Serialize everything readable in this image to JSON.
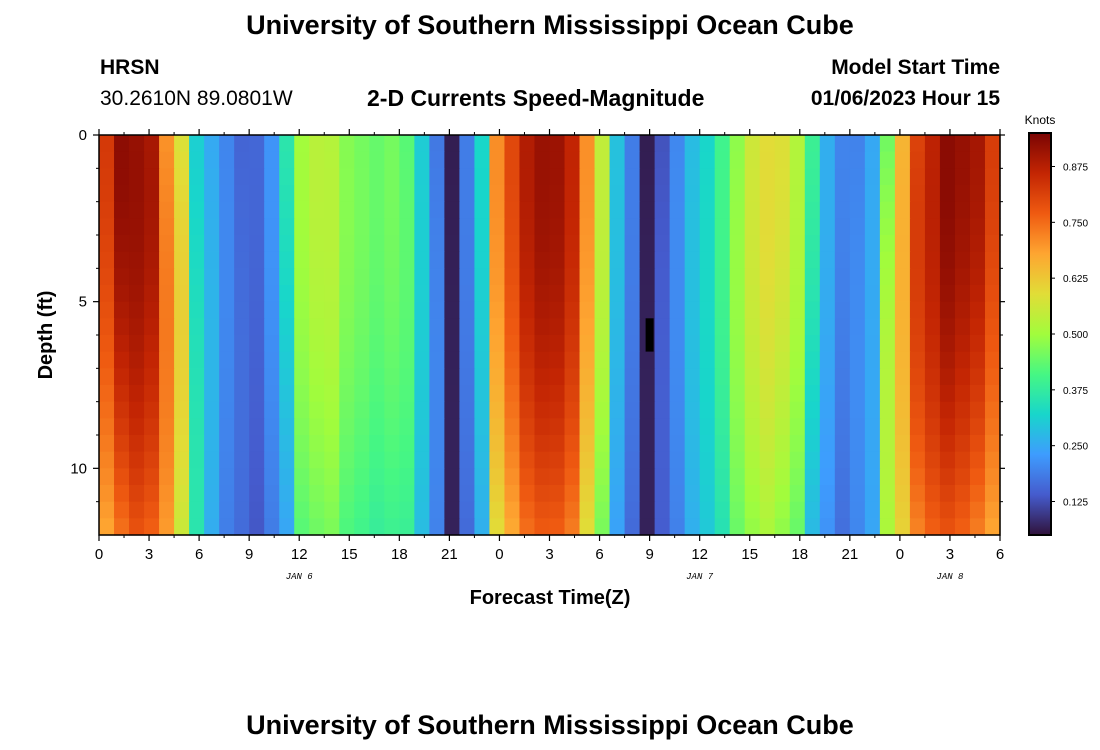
{
  "page": {
    "title_top": "University of Southern Mississippi Ocean Cube",
    "title_bottom": "University of Southern Mississippi Ocean Cube",
    "station": "HRSN",
    "coords": "30.2610N  89.0801W",
    "center_title": "2-D Currents Speed-Magnitude",
    "model_label": "Model Start Time",
    "model_time": "01/06/2023 Hour 15"
  },
  "chart_data": {
    "type": "heatmap",
    "title": "2-D Currents Speed-Magnitude",
    "xlabel": "Forecast Time(Z)",
    "ylabel": "Depth (ft)",
    "x_tick_labels": [
      "0",
      "3",
      "6",
      "9",
      "12",
      "15",
      "18",
      "21",
      "0",
      "3",
      "6",
      "9",
      "12",
      "15",
      "18",
      "21",
      "0",
      "3",
      "6"
    ],
    "x_hours": [
      0,
      3,
      6,
      9,
      12,
      15,
      18,
      21,
      24,
      27,
      30,
      33,
      36,
      39,
      42,
      45,
      48,
      51,
      54
    ],
    "xlim": [
      0,
      54
    ],
    "date_labels": [
      {
        "text": "JAN 6",
        "hour": 12
      },
      {
        "text": "JAN 7",
        "hour": 36
      },
      {
        "text": "JAN 8",
        "hour": 51
      }
    ],
    "y_tick_labels": [
      "0",
      "5",
      "10"
    ],
    "y_values": [
      0,
      5,
      10
    ],
    "ylim": [
      0,
      12
    ],
    "colorbar": {
      "label": "Knots",
      "min": 0.05,
      "max": 0.95,
      "tick_labels": [
        "0.875",
        "0.750",
        "0.625",
        "0.500",
        "0.375",
        "0.250",
        "0.125"
      ],
      "tick_values": [
        0.875,
        0.75,
        0.625,
        0.5,
        0.375,
        0.25,
        0.125
      ]
    },
    "speed_profile_knots": [
      {
        "hour": 0,
        "speed": 0.8
      },
      {
        "hour": 1.5,
        "speed": 0.93
      },
      {
        "hour": 3,
        "speed": 0.9
      },
      {
        "hour": 4.5,
        "speed": 0.65
      },
      {
        "hour": 6,
        "speed": 0.3
      },
      {
        "hour": 7.5,
        "speed": 0.2
      },
      {
        "hour": 9,
        "speed": 0.14
      },
      {
        "hour": 10.5,
        "speed": 0.22
      },
      {
        "hour": 12,
        "speed": 0.5
      },
      {
        "hour": 13.5,
        "speed": 0.54
      },
      {
        "hour": 15,
        "speed": 0.47
      },
      {
        "hour": 16.5,
        "speed": 0.44
      },
      {
        "hour": 18,
        "speed": 0.46
      },
      {
        "hour": 19.5,
        "speed": 0.3
      },
      {
        "hour": 21,
        "speed": 0.06
      },
      {
        "hour": 22.5,
        "speed": 0.22
      },
      {
        "hour": 24,
        "speed": 0.72
      },
      {
        "hour": 25.5,
        "speed": 0.88
      },
      {
        "hour": 27,
        "speed": 0.92
      },
      {
        "hour": 28.5,
        "speed": 0.86
      },
      {
        "hour": 30,
        "speed": 0.55
      },
      {
        "hour": 31.5,
        "speed": 0.22
      },
      {
        "hour": 33,
        "speed": 0.06
      },
      {
        "hour": 34.5,
        "speed": 0.2
      },
      {
        "hour": 36,
        "speed": 0.3
      },
      {
        "hour": 37.5,
        "speed": 0.4
      },
      {
        "hour": 39,
        "speed": 0.56
      },
      {
        "hour": 40.5,
        "speed": 0.6
      },
      {
        "hour": 42,
        "speed": 0.52
      },
      {
        "hour": 43.5,
        "speed": 0.26
      },
      {
        "hour": 45,
        "speed": 0.18
      },
      {
        "hour": 46.5,
        "speed": 0.25
      },
      {
        "hour": 48,
        "speed": 0.65
      },
      {
        "hour": 49.5,
        "speed": 0.85
      },
      {
        "hour": 51,
        "speed": 0.93
      },
      {
        "hour": 52.5,
        "speed": 0.9
      },
      {
        "hour": 54,
        "speed": 0.8
      }
    ],
    "marker": {
      "hour": 33,
      "depth_range": [
        5.5,
        6.5
      ]
    }
  }
}
